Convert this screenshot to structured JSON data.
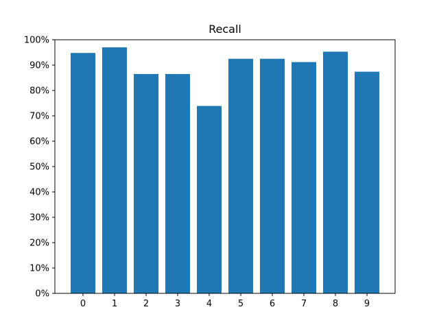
{
  "chart_data": {
    "type": "bar",
    "title": "Recall",
    "xlabel": "",
    "ylabel": "",
    "categories": [
      "0",
      "1",
      "2",
      "3",
      "4",
      "5",
      "6",
      "7",
      "8",
      "9"
    ],
    "values": [
      0.948,
      0.97,
      0.865,
      0.865,
      0.739,
      0.925,
      0.925,
      0.912,
      0.953,
      0.874
    ],
    "ylim": [
      0,
      1.0
    ],
    "yticks": [
      0,
      0.1,
      0.2,
      0.3,
      0.4,
      0.5,
      0.6,
      0.7,
      0.8,
      0.9,
      1.0
    ],
    "ytick_labels": [
      "0%",
      "10%",
      "20%",
      "30%",
      "40%",
      "50%",
      "60%",
      "70%",
      "80%",
      "90%",
      "100%"
    ],
    "grid": false,
    "bar_color": "#1f77b4"
  }
}
